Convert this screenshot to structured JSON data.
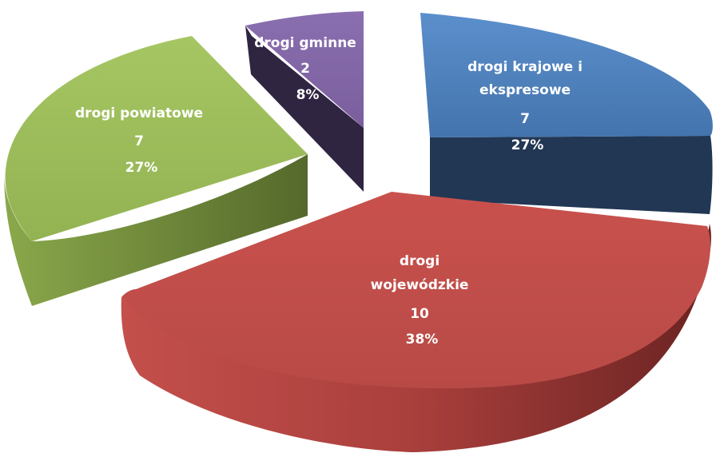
{
  "chart_data": {
    "type": "pie",
    "title": "",
    "slices": [
      {
        "label_lines": [
          "drogi krajowe i",
          "ekspresowe"
        ],
        "value_text": "7",
        "pct_text": "27%",
        "value": 7,
        "percent": 27,
        "color": "#4f81bd",
        "color_side": "#203650"
      },
      {
        "label_lines": [
          "drogi",
          "wojewódzkie"
        ],
        "value_text": "10",
        "pct_text": "38%",
        "value": 10,
        "percent": 38,
        "color": "#c0504d",
        "color_side": "#6e2422"
      },
      {
        "label_lines": [
          "drogi powiatowe"
        ],
        "value_text": "7",
        "pct_text": "27%",
        "value": 7,
        "percent": 27,
        "color": "#9bbb59",
        "color_side": "#5a6e2e"
      },
      {
        "label_lines": [
          "drogi gminne"
        ],
        "value_text": "2",
        "pct_text": "8%",
        "value": 2,
        "percent": 8,
        "color": "#8064a2",
        "color_side": "#3a2c4c"
      }
    ],
    "style": "3d-exploded",
    "legend": "none"
  }
}
